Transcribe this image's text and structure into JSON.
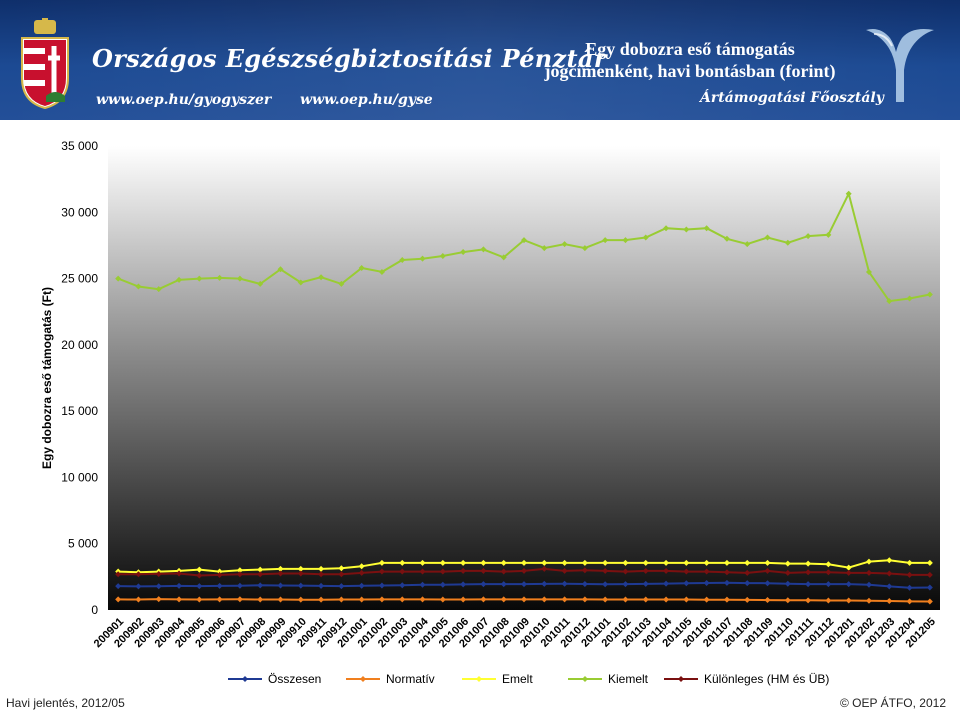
{
  "header": {
    "org_title": "Országos Egészségbiztosítási Pénztár",
    "url_left": "www.oep.hu/gyogyszer",
    "url_right": "www.oep.hu/gyse",
    "title_line1": "Egy dobozra eső támogatás",
    "title_line2": "jogcímenként, havi bontásban (forint)",
    "department": "Ártámogatási Főosztály",
    "colors": {
      "header_bg": "#1c4a93",
      "text": "#ffffff"
    }
  },
  "footer": {
    "left": "Havi jelentés, 2012/05",
    "right": "© OEP ÁTFO, 2012"
  },
  "chart_data": {
    "type": "line",
    "ylabel": "Egy dobozra eső támogatás (Ft)",
    "xlabel": "",
    "ylim": [
      0,
      35000
    ],
    "yticks": [
      0,
      5000,
      10000,
      15000,
      20000,
      25000,
      30000,
      35000
    ],
    "ytick_labels": [
      "0",
      "5 000",
      "10 000",
      "15 000",
      "20 000",
      "25 000",
      "30 000",
      "35 000"
    ],
    "legend_position": "bottom",
    "plot_background": "gradient-gray-to-black",
    "categories": [
      "200901",
      "200902",
      "200903",
      "200904",
      "200905",
      "200906",
      "200907",
      "200908",
      "200909",
      "200910",
      "200911",
      "200912",
      "201001",
      "201002",
      "201003",
      "201004",
      "201005",
      "201006",
      "201007",
      "201008",
      "201009",
      "201010",
      "201011",
      "201012",
      "201101",
      "201102",
      "201103",
      "201104",
      "201105",
      "201106",
      "201107",
      "201108",
      "201109",
      "201110",
      "201111",
      "201112",
      "201201",
      "201202",
      "201203",
      "201204",
      "201205"
    ],
    "series": [
      {
        "name": "Összesen",
        "color": "#1f3a93",
        "values": [
          1800,
          1780,
          1790,
          1820,
          1800,
          1820,
          1830,
          1860,
          1850,
          1840,
          1820,
          1800,
          1830,
          1850,
          1870,
          1900,
          1900,
          1930,
          1950,
          1950,
          1950,
          1970,
          1980,
          1960,
          1940,
          1950,
          1970,
          1990,
          2020,
          2040,
          2050,
          2030,
          2020,
          1980,
          1950,
          1950,
          1950,
          1900,
          1780,
          1680,
          1700
        ]
      },
      {
        "name": "Normatív",
        "color": "#f07f1e",
        "values": [
          800,
          790,
          820,
          800,
          790,
          800,
          810,
          790,
          790,
          780,
          780,
          790,
          790,
          800,
          800,
          800,
          790,
          790,
          800,
          800,
          800,
          800,
          800,
          800,
          790,
          790,
          790,
          790,
          790,
          780,
          780,
          760,
          750,
          740,
          730,
          720,
          720,
          700,
          680,
          650,
          640
        ]
      },
      {
        "name": "Emelt",
        "color": "#ffff33",
        "values": [
          2900,
          2850,
          2900,
          2950,
          3050,
          2900,
          3000,
          3050,
          3100,
          3100,
          3100,
          3150,
          3300,
          3550,
          3550,
          3550,
          3550,
          3550,
          3550,
          3550,
          3550,
          3550,
          3550,
          3550,
          3550,
          3550,
          3550,
          3550,
          3550,
          3550,
          3550,
          3550,
          3550,
          3500,
          3500,
          3450,
          3200,
          3650,
          3750,
          3550,
          3550
        ]
      },
      {
        "name": "Kiemelt",
        "color": "#99cc33",
        "values": [
          25000,
          24400,
          24200,
          24900,
          25000,
          25050,
          25000,
          24600,
          25700,
          24700,
          25100,
          24600,
          25800,
          25500,
          26400,
          26500,
          26700,
          27000,
          27200,
          26600,
          27900,
          27300,
          27600,
          27300,
          27900,
          27900,
          28100,
          28800,
          28700,
          28800,
          28000,
          27600,
          28100,
          27700,
          28200,
          28300,
          31400,
          25500,
          23300,
          23500,
          23800
        ]
      },
      {
        "name": "Különleges (HM és ÜB)",
        "color": "#7a1010",
        "values": [
          2700,
          2700,
          2720,
          2750,
          2600,
          2650,
          2700,
          2700,
          2750,
          2750,
          2700,
          2700,
          2800,
          2900,
          2900,
          2900,
          2900,
          2950,
          2950,
          2900,
          2950,
          3100,
          2950,
          3000,
          2950,
          2900,
          2950,
          2950,
          2900,
          2900,
          2850,
          2800,
          2950,
          2800,
          2850,
          2850,
          2800,
          2800,
          2750,
          2650,
          2650
        ]
      }
    ]
  }
}
